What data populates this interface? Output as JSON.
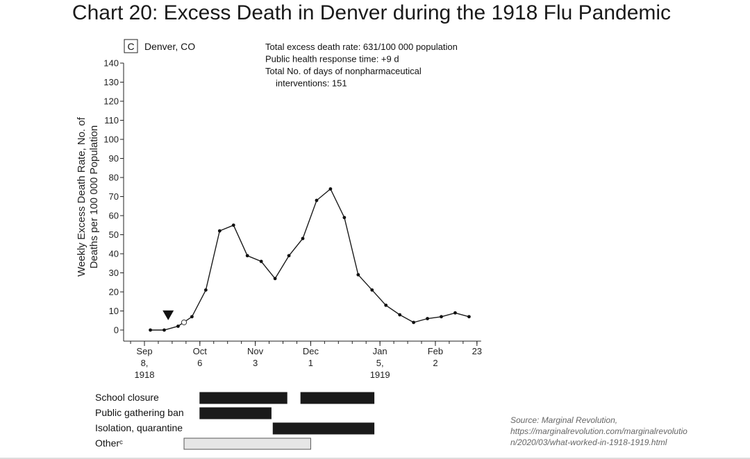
{
  "title": "Chart 20: Excess Death in Denver during the 1918 Flu Pandemic",
  "source_lines": [
    "Source: Marginal Revolution,",
    "https://marginalrevolution.com/marginalrevolutio",
    "n/2020/03/what-worked-in-1918-1919.html"
  ],
  "chart_data": {
    "type": "line",
    "panel_label": "C",
    "location": "Denver, CO",
    "stats": [
      "Total excess death rate: 631/100 000 population",
      "Public health response time: +9 d",
      "Total No. of days of nonpharmaceutical",
      "interventions: 151"
    ],
    "ylabel_lines": [
      "Weekly Excess Death Rate, No. of",
      "Deaths per 100 000 Population"
    ],
    "ylim": [
      0,
      140
    ],
    "yticks": [
      0,
      10,
      20,
      30,
      40,
      50,
      60,
      70,
      80,
      90,
      100,
      110,
      120,
      130,
      140
    ],
    "xlim": [
      "1918-09-01",
      "1919-02-23"
    ],
    "xticks": [
      {
        "date": "1918-09-08",
        "lines": [
          "Sep",
          "8,",
          "1918"
        ]
      },
      {
        "date": "1918-10-06",
        "lines": [
          "Oct",
          "6"
        ]
      },
      {
        "date": "1918-11-03",
        "lines": [
          "Nov",
          "3"
        ]
      },
      {
        "date": "1918-12-01",
        "lines": [
          "Dec",
          "1"
        ]
      },
      {
        "date": "1919-01-05",
        "lines": [
          "Jan",
          "5,",
          "1919"
        ]
      },
      {
        "date": "1919-02-02",
        "lines": [
          "Feb",
          "2"
        ]
      },
      {
        "date": "1919-02-23",
        "lines": [
          "23"
        ]
      }
    ],
    "series": [
      {
        "x": [
          "1918-09-11",
          "1918-09-18",
          "1918-09-25",
          "1918-10-02",
          "1918-10-09",
          "1918-10-16",
          "1918-10-23",
          "1918-10-30",
          "1918-11-06",
          "1918-11-13",
          "1918-11-20",
          "1918-11-27",
          "1918-12-04",
          "1918-12-11",
          "1918-12-18",
          "1918-12-25",
          "1919-01-01",
          "1919-01-08",
          "1919-01-15",
          "1919-01-22",
          "1919-01-29",
          "1919-02-05",
          "1919-02-12",
          "1919-02-19"
        ],
        "y": [
          0,
          0,
          2,
          7,
          21,
          52,
          55,
          39,
          36,
          27,
          39,
          48,
          68,
          74,
          59,
          29,
          21,
          13,
          8,
          4,
          6,
          7,
          9,
          7
        ]
      }
    ],
    "open_marker": {
      "date": "1918-09-28",
      "value": 4
    },
    "response_marker": {
      "date": "1918-09-20",
      "value": 7
    },
    "interventions": [
      {
        "label": "School closure",
        "fill": "#1a1a1a",
        "spans": [
          [
            "1918-10-06",
            "1918-11-19"
          ],
          [
            "1918-11-26",
            "1919-01-02"
          ]
        ]
      },
      {
        "label": "Public gathering ban",
        "fill": "#1a1a1a",
        "spans": [
          [
            "1918-10-06",
            "1918-11-11"
          ]
        ]
      },
      {
        "label": "Isolation, quarantine",
        "fill": "#1a1a1a",
        "spans": [
          [
            "1918-11-12",
            "1919-01-02"
          ]
        ]
      },
      {
        "label": "Otherᶜ",
        "fill": "#e6e6e6",
        "spans": [
          [
            "1918-09-28",
            "1918-12-01"
          ]
        ]
      }
    ]
  }
}
